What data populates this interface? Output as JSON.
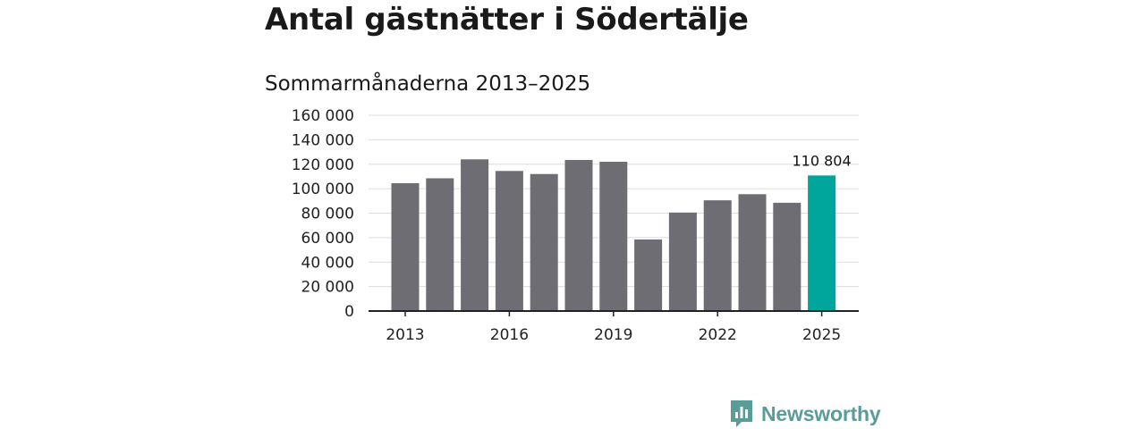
{
  "colors": {
    "bar": "#6e6d73",
    "highlight": "#00a69b",
    "grid": "#dcdcdc",
    "axis": "#222222",
    "brand": "#5a9c97"
  },
  "brand": {
    "name": "Newsworthy",
    "icon": "newsworthy-logo-icon"
  },
  "chart_data": {
    "type": "bar",
    "title": "Antal gästnätter i Södertälje",
    "subtitle": "Sommarmånaderna 2013–2025",
    "xlabel": "",
    "ylabel": "",
    "categories": [
      "2013",
      "2014",
      "2015",
      "2016",
      "2017",
      "2018",
      "2019",
      "2020",
      "2021",
      "2022",
      "2023",
      "2024",
      "2025"
    ],
    "values": [
      104500,
      108500,
      124000,
      114500,
      112000,
      123500,
      122000,
      58500,
      80500,
      90500,
      95500,
      88500,
      110804
    ],
    "highlight_index": 12,
    "ylim": [
      0,
      160000
    ],
    "y_ticks": [
      0,
      20000,
      40000,
      60000,
      80000,
      100000,
      120000,
      140000,
      160000
    ],
    "y_tick_labels": [
      "0",
      "20 000",
      "40 000",
      "60 000",
      "80 000",
      "100 000",
      "120 000",
      "140 000",
      "160 000"
    ],
    "x_tick_labels": [
      "2013",
      "2016",
      "2019",
      "2022",
      "2025"
    ],
    "x_tick_indices": [
      0,
      3,
      6,
      9,
      12
    ],
    "data_labels": [
      {
        "index": 12,
        "text": "110 804"
      }
    ],
    "grid": true,
    "legend": "none"
  }
}
